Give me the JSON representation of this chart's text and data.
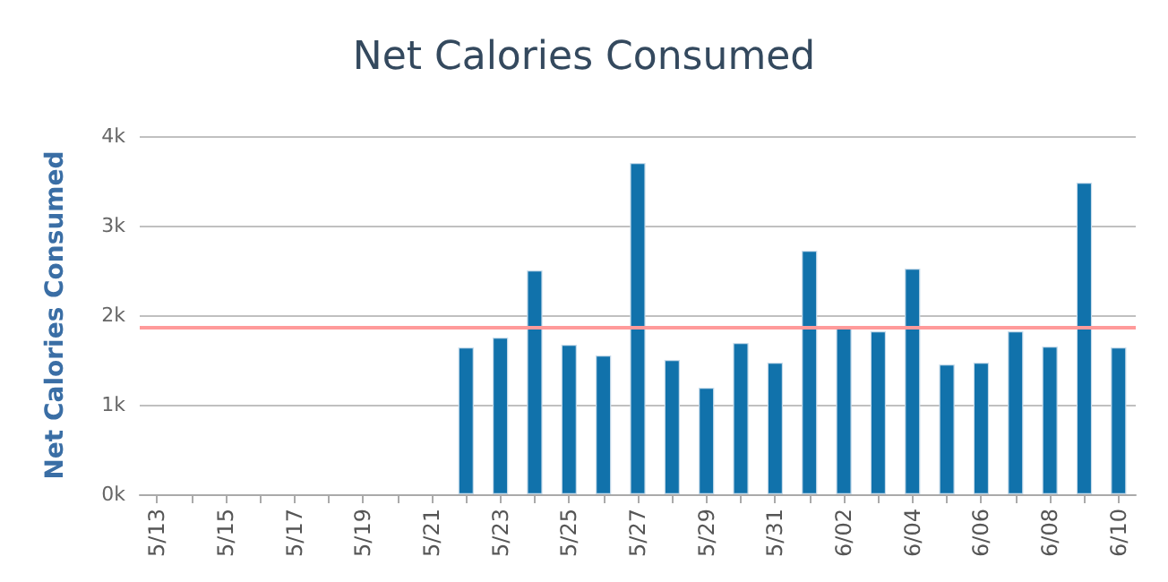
{
  "chart_data": {
    "type": "bar",
    "title": "Net Calories Consumed",
    "ylabel": "Net Calories Consumed",
    "categories": [
      "5/13",
      null,
      "5/15",
      null,
      "5/17",
      null,
      "5/19",
      null,
      "5/21",
      null,
      "5/23",
      null,
      "5/25",
      null,
      "5/27",
      null,
      "5/29",
      null,
      "5/31",
      null,
      "6/02",
      null,
      "6/04",
      null,
      "6/06",
      null,
      "6/08",
      null,
      "6/10"
    ],
    "values": [
      null,
      null,
      null,
      null,
      null,
      null,
      null,
      null,
      null,
      1640,
      1750,
      2500,
      1670,
      1550,
      3700,
      1500,
      1190,
      1690,
      1470,
      2720,
      1880,
      1820,
      2520,
      1450,
      1470,
      1820,
      1650,
      3480,
      1640
    ],
    "color": "#1172ab",
    "ylim": [
      0,
      4000
    ],
    "yticks": [
      {
        "value": 0,
        "label": "0k"
      },
      {
        "value": 1000,
        "label": "1k"
      },
      {
        "value": 2000,
        "label": "2k"
      },
      {
        "value": 3000,
        "label": "3k"
      },
      {
        "value": 4000,
        "label": "4k"
      }
    ],
    "grid": "y",
    "ref_lines": [
      {
        "axis": "y",
        "value": 1875,
        "color": "#ff9a9a"
      }
    ]
  }
}
